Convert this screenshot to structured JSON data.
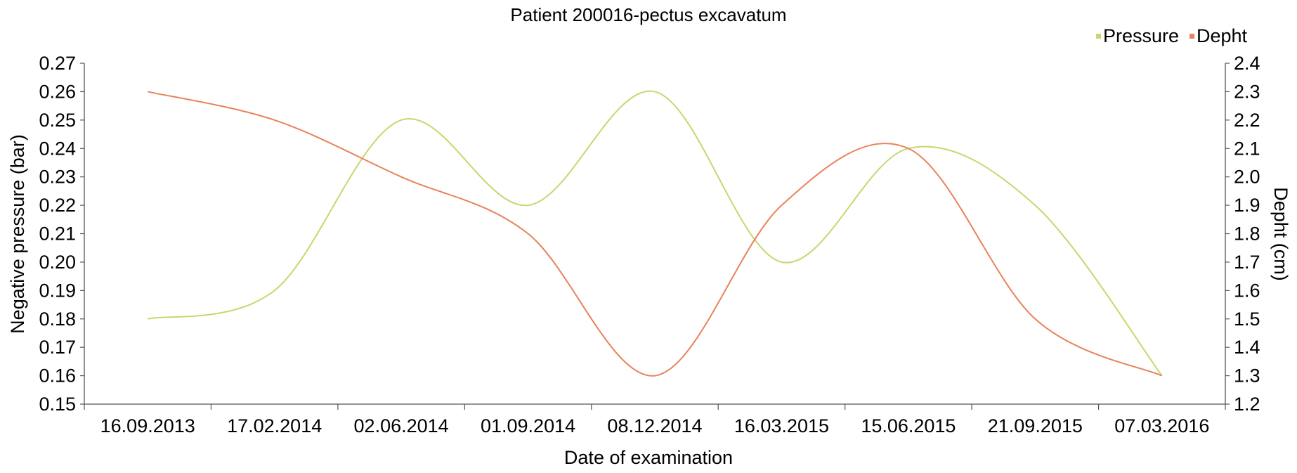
{
  "chart_data": {
    "type": "line",
    "title": "Patient 200016-pectus excavatum",
    "xlabel": "Date of examination",
    "ylabel_left": "Negative pressure (bar)",
    "ylabel_right": "Depht (cm)",
    "categories": [
      "16.09.2013",
      "17.02.2014",
      "02.06.2014",
      "01.09.2014",
      "08.12.2014",
      "16.03.2015",
      "15.06.2015",
      "21.09.2015",
      "07.03.2016"
    ],
    "series": [
      {
        "name": "Pressure",
        "axis": "left",
        "color": "#c5d86d",
        "values": [
          0.18,
          0.19,
          0.25,
          0.22,
          0.26,
          0.2,
          0.24,
          0.22,
          0.16
        ]
      },
      {
        "name": "Depht",
        "axis": "right",
        "color": "#e8825a",
        "values": [
          2.3,
          2.2,
          2.0,
          1.8,
          1.3,
          1.9,
          2.1,
          1.5,
          1.3
        ]
      }
    ],
    "ylim_left": [
      0.15,
      0.27
    ],
    "yticks_left": [
      "0.15",
      "0.16",
      "0.17",
      "0.18",
      "0.19",
      "0.20",
      "0.21",
      "0.22",
      "0.23",
      "0.24",
      "0.25",
      "0.26",
      "0.27"
    ],
    "ylim_right": [
      1.2,
      2.4
    ],
    "yticks_right": [
      "1.2",
      "1.3",
      "1.4",
      "1.5",
      "1.6",
      "1.7",
      "1.8",
      "1.9",
      "2.0",
      "2.1",
      "2.2",
      "2.3",
      "2.4"
    ],
    "legend_position": "top-right",
    "grid": false
  }
}
